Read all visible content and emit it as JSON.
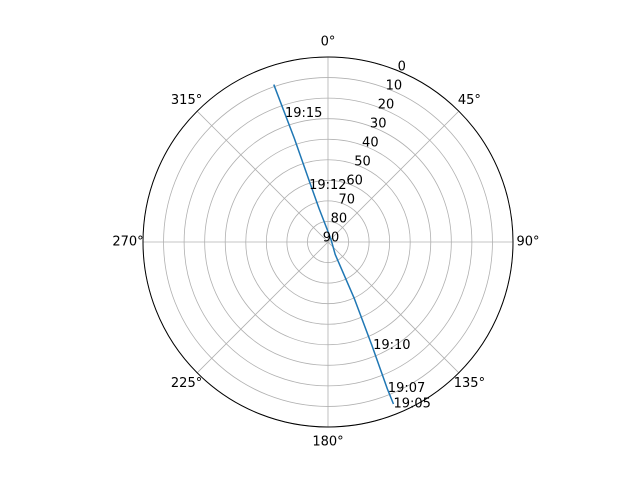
{
  "chart_data": {
    "type": "line",
    "projection": "polar",
    "theta_zero_location": "N",
    "theta_direction": "clockwise",
    "r_axis": "inverted",
    "rlim": [
      90,
      0
    ],
    "grid": true,
    "theta_tick_labels": [
      "0°",
      "45°",
      "90°",
      "135°",
      "180°",
      "225°",
      "270°",
      "315°"
    ],
    "theta_ticks_deg": [
      0,
      45,
      90,
      135,
      180,
      225,
      270,
      315
    ],
    "r_ticks": [
      0,
      10,
      20,
      30,
      40,
      50,
      60,
      70,
      80,
      90
    ],
    "r_tick_labels": [
      "0",
      "10",
      "20",
      "30",
      "40",
      "50",
      "60",
      "70",
      "80",
      "90"
    ],
    "r_label_angle_deg": 22.5,
    "series": [
      {
        "color": "#1f77b4",
        "points": [
          {
            "azimuth_deg": 158,
            "elevation_deg": 5
          },
          {
            "azimuth_deg": 158,
            "elevation_deg": 13
          },
          {
            "azimuth_deg": 157,
            "elevation_deg": 35
          },
          {
            "azimuth_deg": 155,
            "elevation_deg": 60
          },
          {
            "azimuth_deg": 150,
            "elevation_deg": 83
          },
          {
            "azimuth_deg": 45,
            "elevation_deg": 88
          },
          {
            "azimuth_deg": 345,
            "elevation_deg": 73
          },
          {
            "azimuth_deg": 343,
            "elevation_deg": 60
          },
          {
            "azimuth_deg": 342,
            "elevation_deg": 37
          },
          {
            "azimuth_deg": 341,
            "elevation_deg": 9
          }
        ]
      }
    ],
    "annotations": [
      {
        "text": "19:05",
        "azimuth_deg": 158,
        "elevation_deg": 5
      },
      {
        "text": "19:07",
        "azimuth_deg": 157.8,
        "elevation_deg": 13
      },
      {
        "text": "19:10",
        "azimuth_deg": 156.5,
        "elevation_deg": 35
      },
      {
        "text": "19:12",
        "azimuth_deg": 341.5,
        "elevation_deg": 61
      },
      {
        "text": "19:15",
        "azimuth_deg": 341.5,
        "elevation_deg": 24
      }
    ]
  }
}
